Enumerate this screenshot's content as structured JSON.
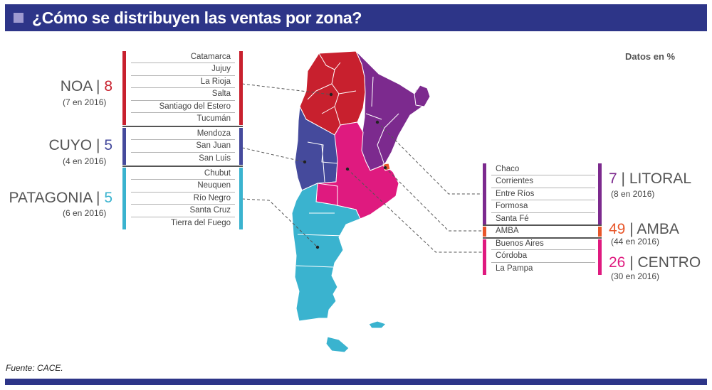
{
  "header": {
    "title": "¿Cómo se distribuyen las ventas por zona?"
  },
  "unit_note": "Datos en %",
  "source": "Fuente: CACE.",
  "colors": {
    "noa": "#c8202e",
    "cuyo": "#454a9c",
    "patagonia": "#3ab3cf",
    "litoral": "#7c2a8e",
    "amba": "#e8562a",
    "centro": "#df1a7f",
    "header": "#2d3588"
  },
  "zones": {
    "noa": {
      "name": "NOA",
      "sep": "|",
      "value": "8",
      "prev": "(7 en 2016)",
      "provinces": [
        "Catamarca",
        "Jujuy",
        "La Rioja",
        "Salta",
        "Santiago del Estero",
        "Tucumán"
      ]
    },
    "cuyo": {
      "name": "CUYO",
      "sep": "|",
      "value": "5",
      "prev": "(4 en 2016)",
      "provinces": [
        "Mendoza",
        "San Juan",
        "San Luis"
      ]
    },
    "patagonia": {
      "name": "PATAGONIA",
      "sep": "|",
      "value": "5",
      "prev": "(6 en 2016)",
      "provinces": [
        "Chubut",
        "Neuquen",
        "Río Negro",
        "Santa Cruz",
        "Tierra del Fuego"
      ]
    },
    "litoral": {
      "name": "LITORAL",
      "sep": "|",
      "value": "7",
      "prev": "(8 en 2016)",
      "provinces": [
        "Chaco",
        "Corrientes",
        "Entre Ríos",
        "Formosa",
        "Santa Fé"
      ]
    },
    "amba": {
      "name": "AMBA",
      "sep": "|",
      "value": "49",
      "prev": "(44 en 2016)",
      "provinces": [
        "AMBA"
      ]
    },
    "centro": {
      "name": "CENTRO",
      "sep": "|",
      "value": "26",
      "prev": "(30 en 2016)",
      "provinces": [
        "Buenos Aires",
        "Córdoba",
        "La Pampa"
      ]
    }
  }
}
